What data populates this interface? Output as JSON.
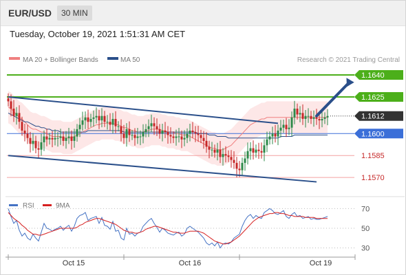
{
  "header": {
    "pair": "EUR/USD",
    "timeframe": "30 MIN"
  },
  "datetime": "Tuesday, October 19, 2021 1:51:31 AM CET",
  "legend": {
    "ma20_label": "MA 20 + Bollinger Bands",
    "ma50_label": "MA 50",
    "credit": "Research © 2021 Trading Central"
  },
  "rsi_legend": {
    "rsi_label": "RSI",
    "ma_label": "9MA"
  },
  "colors": {
    "ma20": "#f08080",
    "ma50": "#2a4f8a",
    "bands_fill": "#fde3e3",
    "resistance": "#4caf1a",
    "support": "#f4a0a0",
    "pivot": "#3b6fd8",
    "last": "#333333",
    "channel": "#2a4f8a",
    "bull": "#2d8a4a",
    "bear": "#c62828",
    "rsi": "#4472c4",
    "rsi_ma": "#d62020"
  },
  "chart_data": [
    {
      "type": "candlestick",
      "title": "EUR/USD 30 MIN",
      "ylim": [
        1.1556,
        1.1648
      ],
      "x_tick_labels": [
        "Oct 15",
        "Oct 16",
        "Oct 19"
      ],
      "price_levels": [
        {
          "label": "1.1640",
          "value": 1.164,
          "style": "resistance-tag"
        },
        {
          "label": "1.1625",
          "value": 1.1625,
          "style": "resistance-tag"
        },
        {
          "label": "1.1612",
          "value": 1.1612,
          "style": "last-price"
        },
        {
          "label": "1.1600",
          "value": 1.16,
          "style": "pivot"
        },
        {
          "label": "1.1585",
          "value": 1.1585,
          "style": "support"
        },
        {
          "label": "1.1570",
          "value": 1.157,
          "style": "support"
        }
      ],
      "channel": {
        "upper": [
          [
            0,
            1.1625
          ],
          [
            98,
            1.1607
          ]
        ],
        "lower": [
          [
            0,
            1.1585
          ],
          [
            112,
            1.1567
          ]
        ]
      },
      "target_arrow": {
        "from": [
          112,
          1.1612
        ],
        "to": [
          124,
          1.1638
        ]
      },
      "close": [
        1.1622,
        1.1617,
        1.1612,
        1.1614,
        1.1608,
        1.1602,
        1.16,
        1.1597,
        1.1593,
        1.1595,
        1.159,
        1.1589,
        1.1594,
        1.1598,
        1.1596,
        1.1597,
        1.1596,
        1.1597,
        1.1597,
        1.1598,
        1.1595,
        1.1597,
        1.1598,
        1.1595,
        1.1598,
        1.1603,
        1.1606,
        1.1609,
        1.1611,
        1.1608,
        1.161,
        1.1611,
        1.1612,
        1.1609,
        1.1612,
        1.1608,
        1.1608,
        1.1606,
        1.161,
        1.1605,
        1.1605,
        1.16,
        1.1597,
        1.1603,
        1.1599,
        1.1599,
        1.1597,
        1.1598,
        1.1598,
        1.1601,
        1.1603,
        1.1605,
        1.1607,
        1.1605,
        1.1603,
        1.16,
        1.1602,
        1.1601,
        1.1599,
        1.1598,
        1.1597,
        1.1598,
        1.1598,
        1.1596,
        1.1597,
        1.16,
        1.1602,
        1.1601,
        1.16,
        1.1599,
        1.1597,
        1.1595,
        1.1591,
        1.1589,
        1.1589,
        1.1587,
        1.1589,
        1.1584,
        1.1586,
        1.1585,
        1.1584,
        1.1582,
        1.158,
        1.1576,
        1.1575,
        1.158,
        1.1583,
        1.1588,
        1.159,
        1.1587,
        1.1589,
        1.1588,
        1.1587,
        1.1592,
        1.1596,
        1.1598,
        1.16,
        1.1598,
        1.1602,
        1.1604,
        1.1606,
        1.1603,
        1.1604,
        1.1611,
        1.1617,
        1.1613,
        1.1614,
        1.161,
        1.1612,
        1.1612,
        1.161,
        1.1611,
        1.161,
        1.1609,
        1.161,
        1.1611,
        1.1612
      ],
      "ma20": [
        1.1618,
        1.1617,
        1.1615,
        1.1613,
        1.1611,
        1.161,
        1.1608,
        1.1606,
        1.1604,
        1.1603,
        1.1603,
        1.1602,
        1.1601,
        1.1601,
        1.16,
        1.1599,
        1.1598,
        1.1598,
        1.1598,
        1.1598,
        1.1597,
        1.1597,
        1.1597,
        1.1597,
        1.1598,
        1.1599,
        1.16,
        1.1601,
        1.1602,
        1.1603,
        1.1604,
        1.1605,
        1.1606,
        1.1606,
        1.1607,
        1.1607,
        1.1607,
        1.1607,
        1.1607,
        1.1606,
        1.1606,
        1.1605,
        1.1604,
        1.1604,
        1.1603,
        1.1602,
        1.1602,
        1.1601,
        1.1601,
        1.1601,
        1.1602,
        1.1602,
        1.1603,
        1.1603,
        1.1603,
        1.1603,
        1.1602,
        1.1602,
        1.1601,
        1.1601,
        1.1601,
        1.16,
        1.16,
        1.1599,
        1.1599,
        1.1599,
        1.1598,
        1.1597,
        1.1596,
        1.1595,
        1.1594,
        1.1593,
        1.1592,
        1.1591,
        1.159,
        1.159,
        1.1589,
        1.1589,
        1.1589,
        1.159,
        1.1591,
        1.1592,
        1.1594,
        1.1596,
        1.1598,
        1.16,
        1.1602,
        1.1604,
        1.1606,
        1.1607,
        1.1608,
        1.1609,
        1.161,
        1.161,
        1.1611,
        1.1611,
        1.1611,
        1.1611,
        1.1611,
        1.1611,
        1.1611,
        1.1611,
        1.1611,
        1.1611,
        1.1611,
        1.1611,
        1.1611,
        1.1611,
        1.1611,
        1.1611,
        1.1611,
        1.1611,
        1.1611,
        1.1611,
        1.1611,
        1.1611,
        1.1611
      ],
      "ma50": [
        1.1614,
        1.1613,
        1.1612,
        1.1611,
        1.161,
        1.1609,
        1.1608,
        1.1608,
        1.1607,
        1.1606,
        1.1605,
        1.1605,
        1.1604,
        1.1604,
        1.1603,
        1.1603,
        1.1602,
        1.1602,
        1.1602,
        1.1601,
        1.1601,
        1.1601,
        1.1601,
        1.1601,
        1.1601,
        1.1601,
        1.1601,
        1.1601,
        1.1601,
        1.1602,
        1.1602,
        1.1602,
        1.1602,
        1.1602,
        1.1602,
        1.1602,
        1.1602,
        1.1602,
        1.1602,
        1.1602,
        1.1602,
        1.1602,
        1.1601,
        1.1601,
        1.1601,
        1.1601,
        1.1601,
        1.1601,
        1.1601,
        1.1601,
        1.1601,
        1.1601,
        1.1601,
        1.1601,
        1.1601,
        1.1601,
        1.1601,
        1.1601,
        1.1601,
        1.1601,
        1.1601,
        1.1601,
        1.1601,
        1.1601,
        1.1601,
        1.1601,
        1.1601,
        1.1601,
        1.1601,
        1.16,
        1.16,
        1.16,
        1.16,
        1.1599,
        1.1599,
        1.1599,
        1.1598,
        1.1598,
        1.1598,
        1.1598,
        1.1597,
        1.1597,
        1.1597,
        1.1597,
        1.1597,
        1.1597,
        1.1597,
        1.1597,
        1.1597,
        1.1597,
        1.1597,
        1.1597,
        1.1597,
        1.1597,
        1.1597,
        1.1597,
        1.1597,
        1.1597,
        1.1597,
        1.1598,
        1.1598,
        1.1598,
        1.1598,
        1.1598,
        1.1599,
        1.1599,
        1.1599,
        1.1599,
        1.1599,
        1.1599,
        1.1599,
        1.1599,
        1.1599,
        1.1599,
        1.1599,
        1.1599,
        1.1599
      ],
      "bollinger_width": 0.0011
    },
    {
      "type": "line",
      "title": "RSI",
      "ylim": [
        22,
        78
      ],
      "y_ticks": [
        70,
        50,
        30
      ],
      "series": [
        {
          "name": "RSI",
          "values": [
            70,
            62,
            55,
            58,
            48,
            42,
            45,
            40,
            38,
            44,
            40,
            37,
            46,
            55,
            50,
            49,
            47,
            49,
            50,
            52,
            48,
            51,
            53,
            47,
            52,
            60,
            63,
            64,
            66,
            58,
            60,
            61,
            62,
            55,
            61,
            53,
            52,
            49,
            57,
            47,
            48,
            40,
            38,
            50,
            44,
            45,
            42,
            45,
            46,
            52,
            55,
            58,
            60,
            55,
            51,
            46,
            50,
            48,
            45,
            44,
            43,
            45,
            46,
            42,
            44,
            50,
            52,
            50,
            48,
            46,
            43,
            40,
            35,
            33,
            35,
            32,
            36,
            30,
            34,
            35,
            34,
            36,
            40,
            42,
            44,
            52,
            58,
            62,
            64,
            60,
            63,
            61,
            60,
            66,
            68,
            70,
            68,
            65,
            64,
            66,
            68,
            62,
            60,
            64,
            66,
            62,
            63,
            60,
            61,
            62,
            59,
            60,
            59,
            59,
            60,
            61,
            62
          ]
        },
        {
          "name": "9MA",
          "values": [
            66,
            63,
            60,
            58,
            56,
            53,
            51,
            48,
            46,
            44,
            44,
            43,
            43,
            44,
            45,
            46,
            47,
            48,
            49,
            50,
            50,
            50,
            50,
            50,
            50,
            51,
            53,
            54,
            56,
            57,
            58,
            59,
            60,
            60,
            59,
            58,
            57,
            56,
            55,
            54,
            52,
            50,
            48,
            47,
            46,
            46,
            45,
            45,
            46,
            47,
            49,
            50,
            51,
            52,
            52,
            51,
            50,
            49,
            48,
            47,
            46,
            46,
            45,
            45,
            45,
            46,
            47,
            47,
            47,
            47,
            46,
            45,
            43,
            41,
            39,
            37,
            36,
            35,
            34,
            34,
            35,
            36,
            38,
            40,
            42,
            45,
            48,
            51,
            54,
            57,
            59,
            61,
            62,
            63,
            64,
            65,
            65,
            66,
            66,
            65,
            65,
            64,
            63,
            63,
            62,
            62,
            62,
            62,
            61,
            61,
            61,
            61,
            60,
            60,
            60,
            60,
            60
          ]
        }
      ]
    }
  ]
}
